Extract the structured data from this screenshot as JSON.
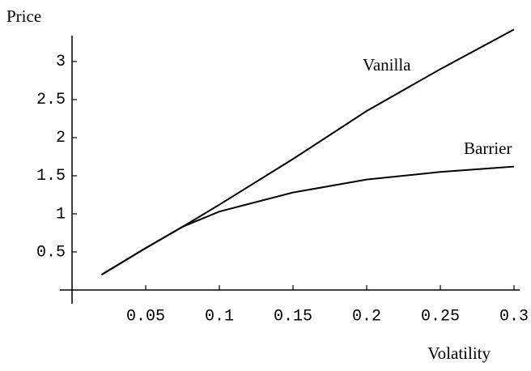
{
  "chart_data": {
    "type": "line",
    "x_label": "Volatility",
    "y_label": "Price",
    "x": [
      0.02,
      0.05,
      0.075,
      0.1,
      0.15,
      0.2,
      0.25,
      0.3
    ],
    "series": [
      {
        "name": "Vanilla",
        "color": "#000000",
        "values": [
          0.2,
          0.55,
          0.83,
          1.12,
          1.72,
          2.35,
          2.9,
          3.42
        ]
      },
      {
        "name": "Barrier",
        "color": "#000000",
        "values": [
          0.2,
          0.55,
          0.83,
          1.03,
          1.28,
          1.45,
          1.55,
          1.62
        ]
      }
    ],
    "xlim": [
      0,
      0.3
    ],
    "ylim": [
      0,
      3.35
    ],
    "xticks": [
      0.05,
      0.1,
      0.15,
      0.2,
      0.25,
      0.3
    ],
    "yticks": [
      0.5,
      1,
      1.5,
      2,
      2.5,
      3
    ],
    "grid": false
  }
}
